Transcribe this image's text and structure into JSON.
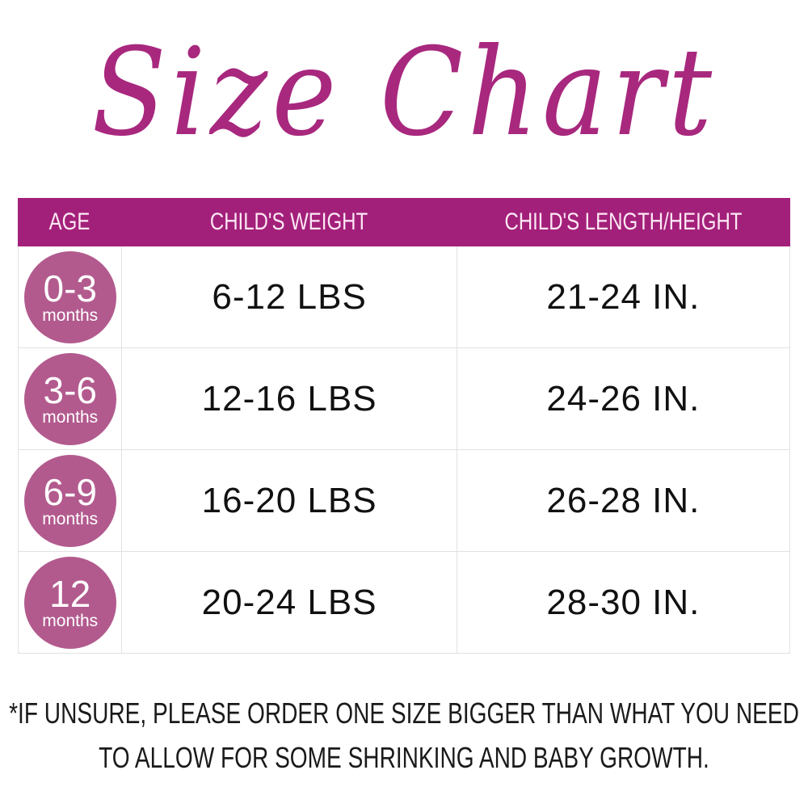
{
  "title": "Size Chart",
  "colors": {
    "title": "#a8287e",
    "header": "#a3207a",
    "badge": "#b25a8e"
  },
  "headers": [
    "AGE",
    "CHILD'S WEIGHT",
    "CHILD'S LENGTH/HEIGHT"
  ],
  "rows": [
    {
      "age": "0-3",
      "unit": "months",
      "weight": "6-12 LBS",
      "length": "21-24 IN."
    },
    {
      "age": "3-6",
      "unit": "months",
      "weight": "12-16 LBS",
      "length": "24-26 IN."
    },
    {
      "age": "6-9",
      "unit": "months",
      "weight": "16-20 LBS",
      "length": "26-28 IN."
    },
    {
      "age": "12",
      "unit": "months",
      "weight": "20-24 LBS",
      "length": "28-30 IN."
    }
  ],
  "footnote": [
    "*IF UNSURE, PLEASE ORDER ONE SIZE BIGGER THAN WHAT YOU NEED",
    "TO ALLOW FOR SOME SHRINKING AND BABY GROWTH."
  ]
}
